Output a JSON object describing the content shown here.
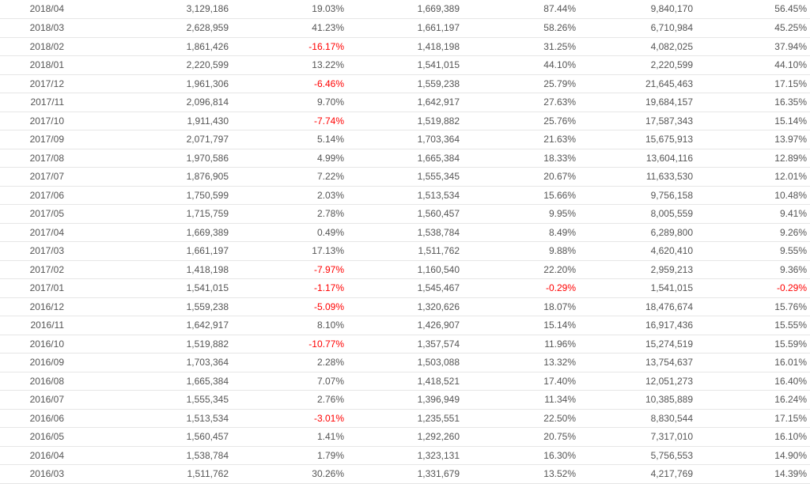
{
  "table": {
    "negative_color": "#ff0000",
    "rows": [
      [
        "2018/04",
        "3,129,186",
        "19.03%",
        "1,669,389",
        "87.44%",
        "9,840,170",
        "56.45%"
      ],
      [
        "2018/03",
        "2,628,959",
        "41.23%",
        "1,661,197",
        "58.26%",
        "6,710,984",
        "45.25%"
      ],
      [
        "2018/02",
        "1,861,426",
        "-16.17%",
        "1,418,198",
        "31.25%",
        "4,082,025",
        "37.94%"
      ],
      [
        "2018/01",
        "2,220,599",
        "13.22%",
        "1,541,015",
        "44.10%",
        "2,220,599",
        "44.10%"
      ],
      [
        "2017/12",
        "1,961,306",
        "-6.46%",
        "1,559,238",
        "25.79%",
        "21,645,463",
        "17.15%"
      ],
      [
        "2017/11",
        "2,096,814",
        "9.70%",
        "1,642,917",
        "27.63%",
        "19,684,157",
        "16.35%"
      ],
      [
        "2017/10",
        "1,911,430",
        "-7.74%",
        "1,519,882",
        "25.76%",
        "17,587,343",
        "15.14%"
      ],
      [
        "2017/09",
        "2,071,797",
        "5.14%",
        "1,703,364",
        "21.63%",
        "15,675,913",
        "13.97%"
      ],
      [
        "2017/08",
        "1,970,586",
        "4.99%",
        "1,665,384",
        "18.33%",
        "13,604,116",
        "12.89%"
      ],
      [
        "2017/07",
        "1,876,905",
        "7.22%",
        "1,555,345",
        "20.67%",
        "11,633,530",
        "12.01%"
      ],
      [
        "2017/06",
        "1,750,599",
        "2.03%",
        "1,513,534",
        "15.66%",
        "9,756,158",
        "10.48%"
      ],
      [
        "2017/05",
        "1,715,759",
        "2.78%",
        "1,560,457",
        "9.95%",
        "8,005,559",
        "9.41%"
      ],
      [
        "2017/04",
        "1,669,389",
        "0.49%",
        "1,538,784",
        "8.49%",
        "6,289,800",
        "9.26%"
      ],
      [
        "2017/03",
        "1,661,197",
        "17.13%",
        "1,511,762",
        "9.88%",
        "4,620,410",
        "9.55%"
      ],
      [
        "2017/02",
        "1,418,198",
        "-7.97%",
        "1,160,540",
        "22.20%",
        "2,959,213",
        "9.36%"
      ],
      [
        "2017/01",
        "1,541,015",
        "-1.17%",
        "1,545,467",
        "-0.29%",
        "1,541,015",
        "-0.29%"
      ],
      [
        "2016/12",
        "1,559,238",
        "-5.09%",
        "1,320,626",
        "18.07%",
        "18,476,674",
        "15.76%"
      ],
      [
        "2016/11",
        "1,642,917",
        "8.10%",
        "1,426,907",
        "15.14%",
        "16,917,436",
        "15.55%"
      ],
      [
        "2016/10",
        "1,519,882",
        "-10.77%",
        "1,357,574",
        "11.96%",
        "15,274,519",
        "15.59%"
      ],
      [
        "2016/09",
        "1,703,364",
        "2.28%",
        "1,503,088",
        "13.32%",
        "13,754,637",
        "16.01%"
      ],
      [
        "2016/08",
        "1,665,384",
        "7.07%",
        "1,418,521",
        "17.40%",
        "12,051,273",
        "16.40%"
      ],
      [
        "2016/07",
        "1,555,345",
        "2.76%",
        "1,396,949",
        "11.34%",
        "10,385,889",
        "16.24%"
      ],
      [
        "2016/06",
        "1,513,534",
        "-3.01%",
        "1,235,551",
        "22.50%",
        "8,830,544",
        "17.15%"
      ],
      [
        "2016/05",
        "1,560,457",
        "1.41%",
        "1,292,260",
        "20.75%",
        "7,317,010",
        "16.10%"
      ],
      [
        "2016/04",
        "1,538,784",
        "1.79%",
        "1,323,131",
        "16.30%",
        "5,756,553",
        "14.90%"
      ],
      [
        "2016/03",
        "1,511,762",
        "30.26%",
        "1,331,679",
        "13.52%",
        "4,217,769",
        "14.39%"
      ]
    ]
  }
}
